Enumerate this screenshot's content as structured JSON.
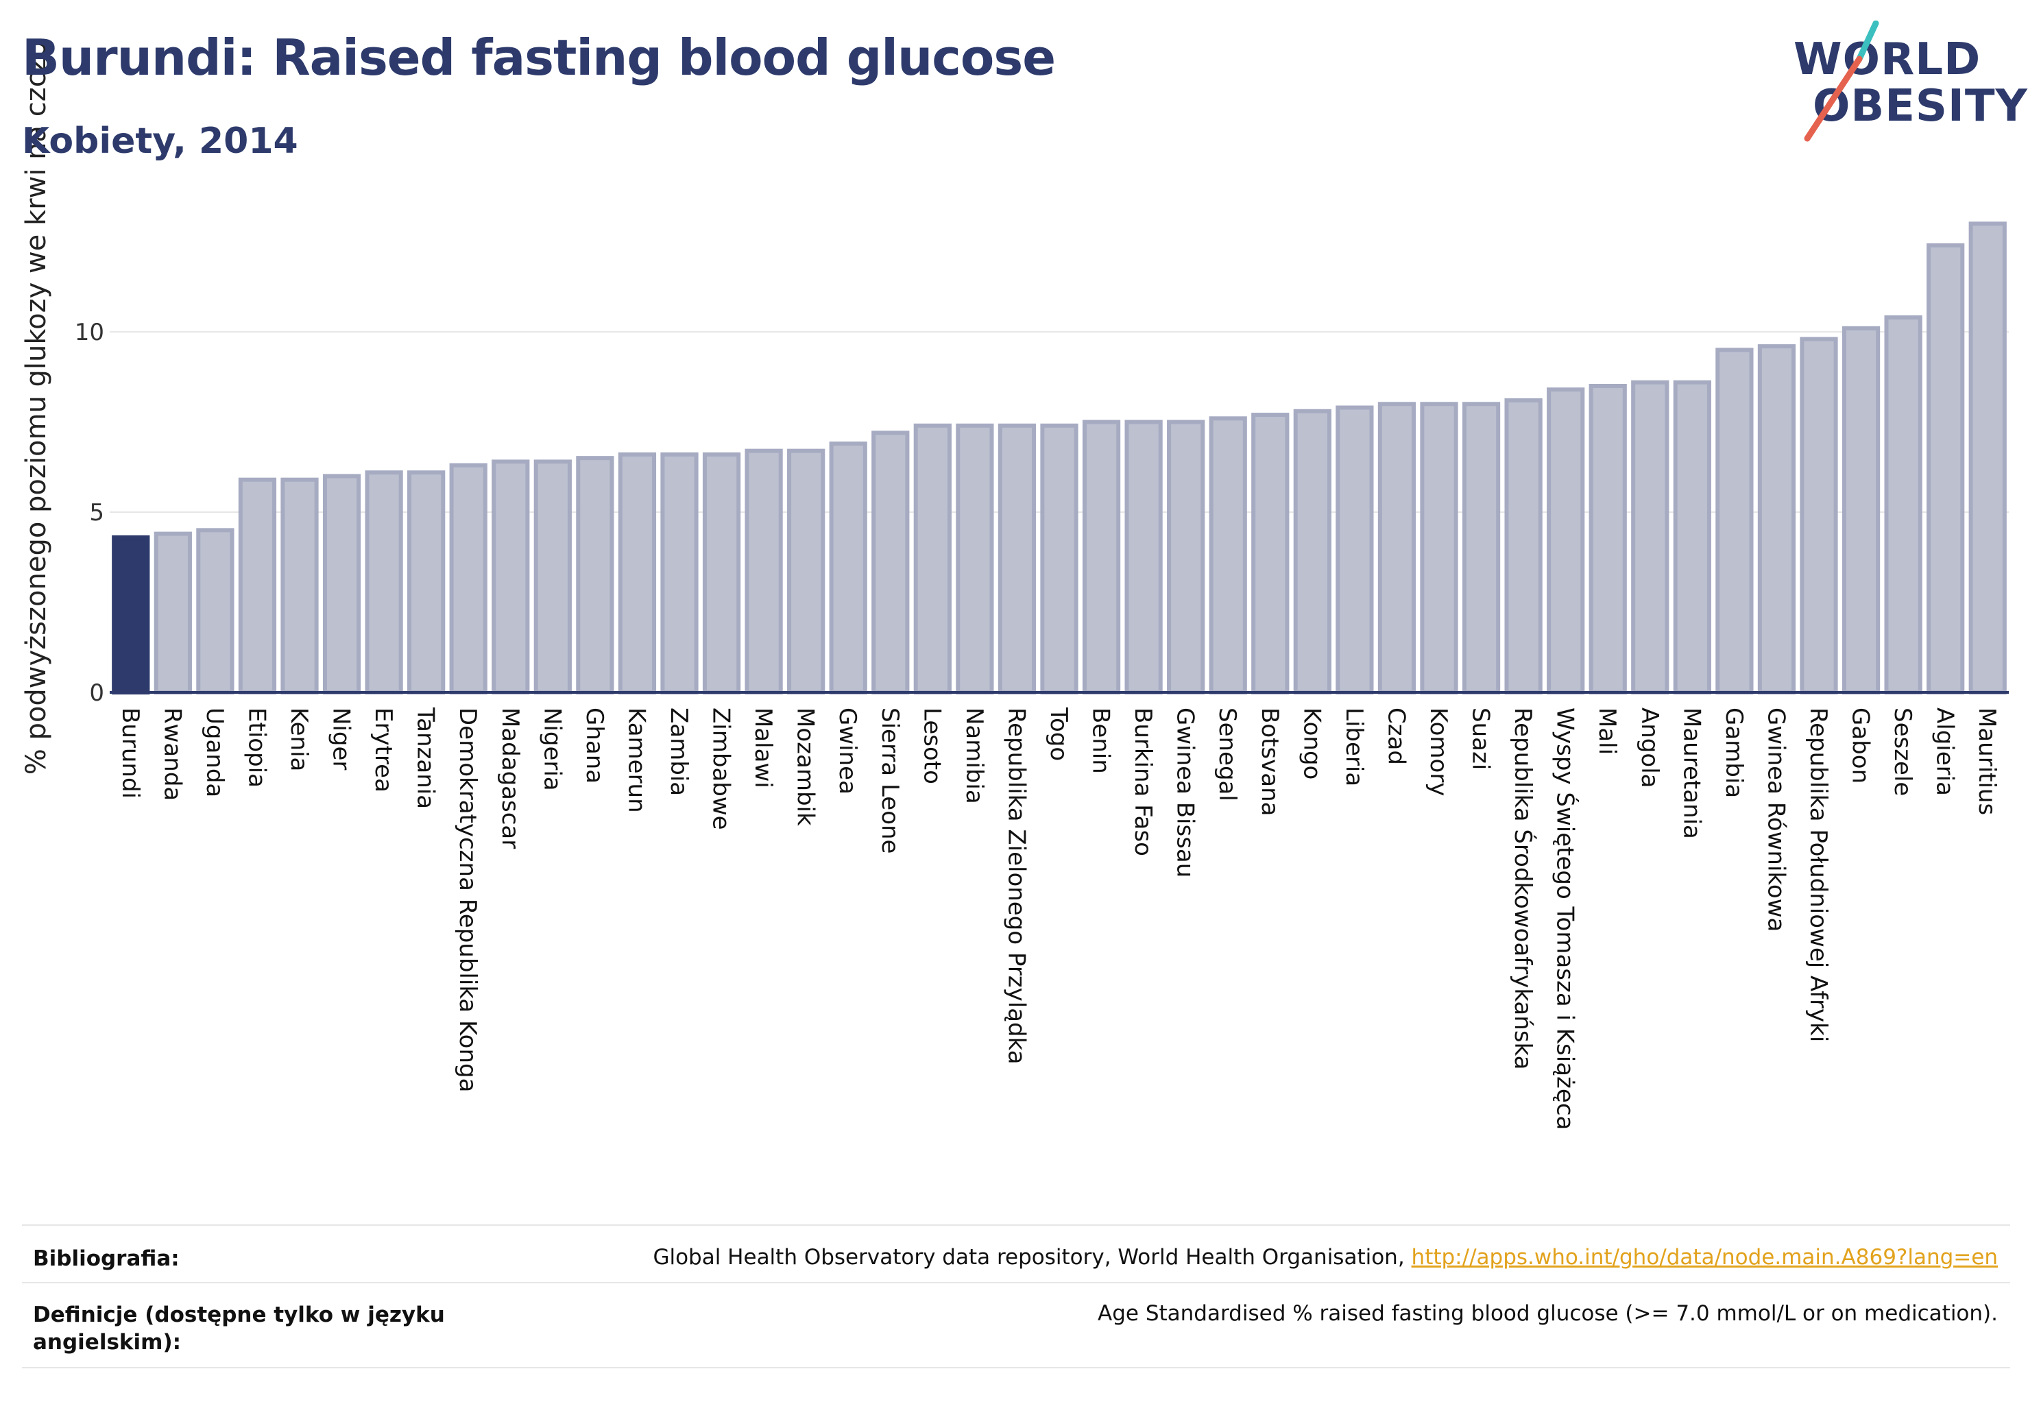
{
  "title": "Burundi: Raised fasting blood glucose",
  "subtitle": "Kobiety, 2014",
  "logo": {
    "line1": "WORLD",
    "line2": "OBESITY"
  },
  "colors": {
    "highlight": "#2d3a6b",
    "bar": "#bcc0cf",
    "bar_edge": "#a6abc2",
    "grid": "#e6e6e6",
    "title": "#2d3a6b",
    "link": "#e2a21c"
  },
  "chart_data": {
    "type": "bar",
    "ylabel": "% podwyższonego poziomu glukozy we krwi na czczo",
    "ylim": [
      0,
      13.5
    ],
    "yticks": [
      0,
      5,
      10
    ],
    "grid": true,
    "highlight": "Burundi",
    "categories": [
      "Burundi",
      "Rwanda",
      "Uganda",
      "Etiopia",
      "Kenia",
      "Niger",
      "Erytrea",
      "Tanzania",
      "Demokratyczna Republika Konga",
      "Madagascar",
      "Nigeria",
      "Ghana",
      "Kamerun",
      "Zambia",
      "Zimbabwe",
      "Malawi",
      "Mozambik",
      "Gwinea",
      "Sierra Leone",
      "Lesoto",
      "Namibia",
      "Republika Zielonego Przylądka",
      "Togo",
      "Benin",
      "Burkina Faso",
      "Gwinea Bissau",
      "Senegal",
      "Botsvana",
      "Kongo",
      "Liberia",
      "Czad",
      "Komory",
      "Suazi",
      "Republika Środkowoafrykańska",
      "Wyspy Świętego Tomasza i Książęca",
      "Mali",
      "Angola",
      "Mauretania",
      "Gambia",
      "Gwinea Równikowa",
      "Republika Południowej Afryki",
      "Gabon",
      "Seszele",
      "Algieria",
      "Mauritius"
    ],
    "values": [
      4.3,
      4.4,
      4.5,
      5.9,
      5.9,
      6.0,
      6.1,
      6.1,
      6.3,
      6.4,
      6.4,
      6.5,
      6.6,
      6.6,
      6.6,
      6.7,
      6.7,
      6.9,
      7.2,
      7.4,
      7.4,
      7.4,
      7.4,
      7.5,
      7.5,
      7.5,
      7.6,
      7.7,
      7.8,
      7.9,
      8.0,
      8.0,
      8.0,
      8.1,
      8.4,
      8.5,
      8.6,
      8.6,
      9.5,
      9.6,
      9.8,
      10.1,
      10.4,
      12.4,
      13.0
    ]
  },
  "footer": {
    "bibliography_label": "Bibliografia:",
    "bibliography_text": "Global Health Observatory data repository, World Health Organisation, ",
    "bibliography_link": "http://apps.who.int/gho/data/node.main.A869?lang=en",
    "definitions_label": "Definicje (dostępne tylko w języku angielskim):",
    "definitions_text": "Age Standardised % raised fasting blood glucose (>= 7.0 mmol/L or on medication)."
  }
}
